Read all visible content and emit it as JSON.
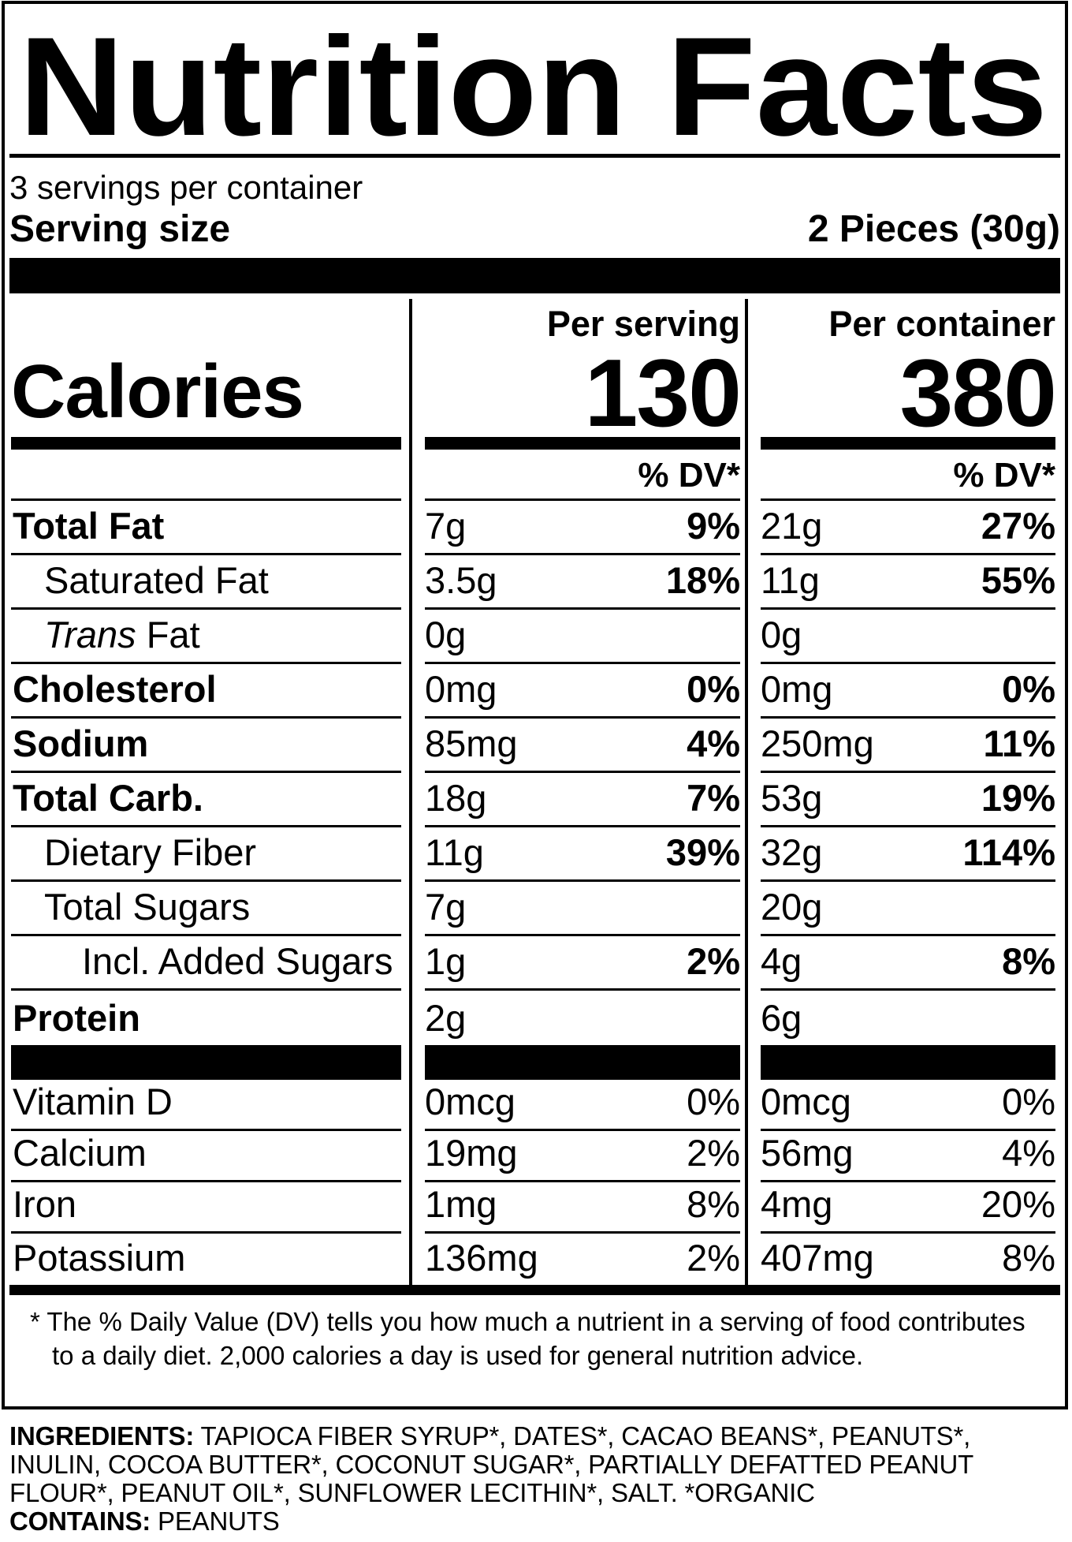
{
  "title": "Nutrition Facts",
  "servings_per_container": "3 servings per container",
  "serving_size": {
    "label": "Serving size",
    "value": "2 Pieces (30g)"
  },
  "calories": {
    "label": "Calories",
    "per_serving_header": "Per serving",
    "per_container_header": "Per container",
    "per_serving": "130",
    "per_container": "380"
  },
  "dv_header": "% DV*",
  "rows": [
    {
      "name": "Total Fat",
      "serving": {
        "amount": "7g",
        "dv": "9%"
      },
      "container": {
        "amount": "21g",
        "dv": "27%"
      }
    },
    {
      "name": "Saturated Fat",
      "serving": {
        "amount": "3.5g",
        "dv": "18%"
      },
      "container": {
        "amount": "11g",
        "dv": "55%"
      }
    },
    {
      "name_italic": "Trans",
      "name_rest": " Fat",
      "serving": {
        "amount": "0g",
        "dv": ""
      },
      "container": {
        "amount": "0g",
        "dv": ""
      }
    },
    {
      "name": "Cholesterol",
      "serving": {
        "amount": "0mg",
        "dv": "0%"
      },
      "container": {
        "amount": "0mg",
        "dv": "0%"
      }
    },
    {
      "name": "Sodium",
      "serving": {
        "amount": "85mg",
        "dv": "4%"
      },
      "container": {
        "amount": "250mg",
        "dv": "11%"
      }
    },
    {
      "name": "Total Carb.",
      "serving": {
        "amount": "18g",
        "dv": "7%"
      },
      "container": {
        "amount": "53g",
        "dv": "19%"
      }
    },
    {
      "name": "Dietary Fiber",
      "serving": {
        "amount": "11g",
        "dv": "39%"
      },
      "container": {
        "amount": "32g",
        "dv": "114%"
      }
    },
    {
      "name": "Total Sugars",
      "serving": {
        "amount": "7g",
        "dv": ""
      },
      "container": {
        "amount": "20g",
        "dv": ""
      }
    },
    {
      "name": "Incl. Added Sugars",
      "serving": {
        "amount": "1g",
        "dv": "2%"
      },
      "container": {
        "amount": "4g",
        "dv": "8%"
      }
    },
    {
      "name": "Protein",
      "serving": {
        "amount": "2g",
        "dv": ""
      },
      "container": {
        "amount": "6g",
        "dv": ""
      }
    }
  ],
  "vitamins": [
    {
      "name": "Vitamin D",
      "serving": {
        "amount": "0mcg",
        "dv": "0%"
      },
      "container": {
        "amount": "0mcg",
        "dv": "0%"
      }
    },
    {
      "name": "Calcium",
      "serving": {
        "amount": "19mg",
        "dv": "2%"
      },
      "container": {
        "amount": "56mg",
        "dv": "4%"
      }
    },
    {
      "name": "Iron",
      "serving": {
        "amount": "1mg",
        "dv": "8%"
      },
      "container": {
        "amount": "4mg",
        "dv": "20%"
      }
    },
    {
      "name": "Potassium",
      "serving": {
        "amount": "136mg",
        "dv": "2%"
      },
      "container": {
        "amount": "407mg",
        "dv": "8%"
      }
    }
  ],
  "footnote": {
    "marker": "*",
    "text": "The % Daily Value (DV) tells you how much a nutrient in a serving of food contributes to a daily diet. 2,000 calories a day is used for general nutrition advice."
  },
  "ingredients": {
    "label": "INGREDIENTS:",
    "text": "TAPIOCA FIBER SYRUP*, DATES*, CACAO BEANS*, PEANUTS*, INULIN, COCOA BUTTER*, COCONUT SUGAR*, PARTIALLY DEFATTED PEANUT FLOUR*, PEANUT OIL*, SUNFLOWER LECITHIN*, SALT. *ORGANIC",
    "contains_label": "CONTAINS:",
    "contains": "PEANUTS"
  },
  "colors": {
    "ink": "#000000",
    "paper": "#ffffff"
  }
}
